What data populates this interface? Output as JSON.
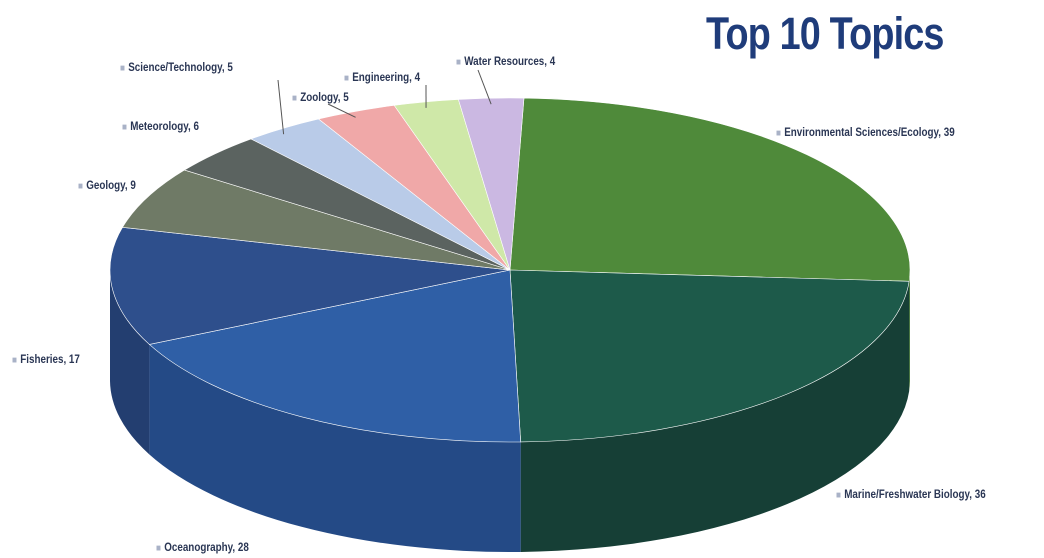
{
  "chart_data": {
    "type": "pie",
    "title": "Top 10 Topics",
    "slices": [
      {
        "label": "Environmental Sciences/Ecology",
        "value": 39,
        "color": "#4f8a3a",
        "side": "#3d6e2c"
      },
      {
        "label": "Marine/Freshwater Biology",
        "value": 36,
        "color": "#1d5a4a",
        "side": "#163f36"
      },
      {
        "label": "Oceanography",
        "value": 28,
        "color": "#2f5fa6",
        "side": "#244a86"
      },
      {
        "label": "Fisheries",
        "value": 17,
        "color": "#2e4f8c",
        "side": "#233e70"
      },
      {
        "label": "Geology",
        "value": 9,
        "color": "#6f7a66",
        "side": "#555f4f"
      },
      {
        "label": "Meteorology",
        "value": 6,
        "color": "#5b6360",
        "side": "#474d4a"
      },
      {
        "label": "Science/Technology",
        "value": 5,
        "color": "#b9cbe8",
        "side": "#93a6c6"
      },
      {
        "label": "Zoology",
        "value": 5,
        "color": "#f0a8a8",
        "side": "#cf8b8b"
      },
      {
        "label": "Engineering",
        "value": 4,
        "color": "#cfe8a8",
        "side": "#aac788"
      },
      {
        "label": "Water Resources",
        "value": 4,
        "color": "#cbb8e2",
        "side": "#a897c1"
      }
    ],
    "legend": "callouts"
  }
}
